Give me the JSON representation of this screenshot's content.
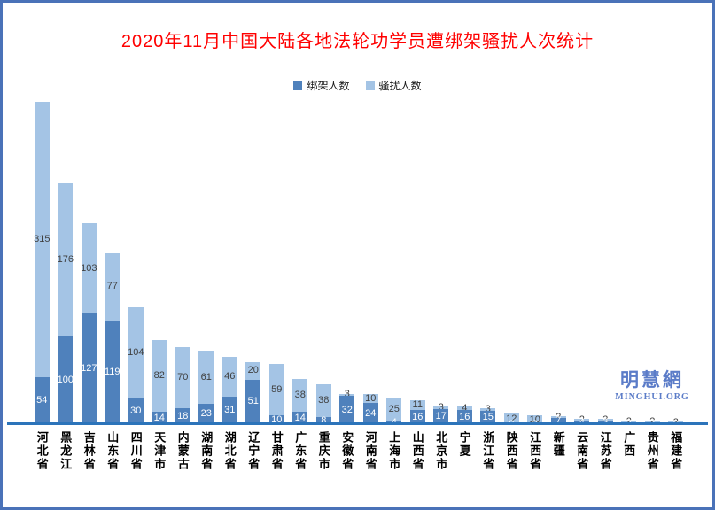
{
  "page": {
    "border_color": "#4a72b8",
    "background_color": "#ffffff",
    "axis_line_color": "#2c74ba"
  },
  "title": {
    "text": "2020年11月中国大陆各地法轮功学员遭绑架骚扰人次统计",
    "color": "#ff0000"
  },
  "legend": [
    {
      "label": "绑架人数",
      "color": "#4f81bc"
    },
    {
      "label": "骚扰人数",
      "color": "#a4c4e5"
    }
  ],
  "watermark": {
    "cn": "明慧網",
    "en": "MINGHUI.ORG",
    "color": "#5b7cc8"
  },
  "chart_data": {
    "type": "bar",
    "stacked": true,
    "title": "2020年11月中国大陆各地法轮功学员遭绑架骚扰人次统计",
    "legend_position": "top",
    "grid": false,
    "y_axis_visible": false,
    "ylim": [
      0,
      375
    ],
    "categories": [
      "河北省",
      "黑龙江",
      "吉林省",
      "山东省",
      "四川省",
      "天津市",
      "内蒙古",
      "湖南省",
      "湖北省",
      "辽宁省",
      "甘肃省",
      "广东省",
      "重庆市",
      "安徽省",
      "河南省",
      "上海市",
      "山西省",
      "北京市",
      "宁夏",
      "浙江省",
      "陕西省",
      "江西省",
      "新疆",
      "云南省",
      "江苏省",
      "广西",
      "贵州省",
      "福建省"
    ],
    "series": [
      {
        "name": "绑架人数",
        "color": "#4f81bc",
        "label_color": "#ffffff",
        "values": [
          54,
          100,
          127,
          119,
          30,
          14,
          18,
          23,
          31,
          51,
          10,
          14,
          8,
          32,
          24,
          4,
          16,
          17,
          16,
          15,
          0,
          0,
          7,
          4,
          3,
          2,
          2,
          0
        ]
      },
      {
        "name": "骚扰人数",
        "color": "#a4c4e5",
        "label_color": "#3f3f3f",
        "values": [
          315,
          176,
          103,
          77,
          104,
          82,
          70,
          61,
          46,
          20,
          59,
          38,
          38,
          3,
          10,
          25,
          11,
          3,
          4,
          3,
          12,
          10,
          2,
          2,
          3,
          2,
          2,
          3
        ]
      }
    ],
    "data_labels": true
  }
}
